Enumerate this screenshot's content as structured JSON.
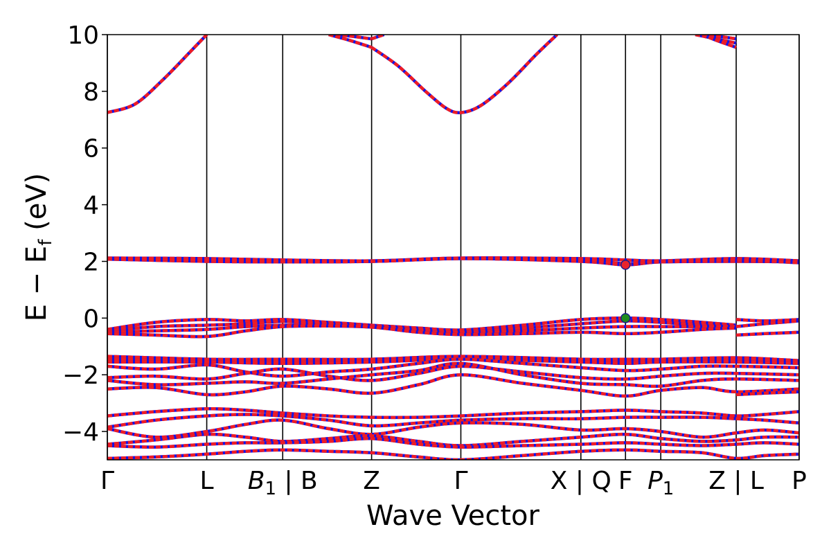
{
  "chart_data": {
    "type": "line",
    "title": "",
    "xlabel": "Wave Vector",
    "ylabel": "E − E_f (eV)",
    "ylabel_main": "E − E",
    "ylabel_sub": "f",
    "ylabel_unit": " (eV)",
    "ylim": [
      -5,
      10
    ],
    "xlim": [
      0,
      1
    ],
    "grid": false,
    "legend": "none",
    "y_ticks": [
      -4,
      -2,
      0,
      2,
      4,
      6,
      8,
      10
    ],
    "y_tick_labels": [
      "−4",
      "−2",
      "0",
      "2",
      "4",
      "6",
      "8",
      "10"
    ],
    "kpoints": [
      {
        "x": 0.0,
        "label": "Γ",
        "italic": false
      },
      {
        "x": 0.1437,
        "label": "L",
        "italic": false
      },
      {
        "x": 0.2535,
        "label": "B",
        "sub": "1",
        "suffix": " | B",
        "italic": true
      },
      {
        "x": 0.382,
        "label": "Z",
        "italic": false
      },
      {
        "x": 0.511,
        "label": "Γ",
        "italic": false
      },
      {
        "x": 0.6845,
        "label": "X | Q",
        "italic": false
      },
      {
        "x": 0.749,
        "label": "F",
        "italic": false
      },
      {
        "x": 0.8,
        "label": "P",
        "sub": "1",
        "italic": true
      },
      {
        "x": 0.909,
        "label": "Z | L",
        "italic": false
      },
      {
        "x": 1.0,
        "label": "P",
        "italic": false
      }
    ],
    "special_points": [
      {
        "name": "CBM",
        "x": 0.749,
        "y": 1.88,
        "color": "#e8242c"
      },
      {
        "name": "VBM",
        "x": 0.749,
        "y": 0.0,
        "color": "#1e8c1e"
      }
    ],
    "series": [
      {
        "x": [
          0,
          0.04,
          0.08,
          0.12,
          0.1437
        ],
        "y": [
          7.25,
          7.55,
          8.4,
          9.4,
          10.0
        ]
      },
      {
        "x": [
          0.32,
          0.35,
          0.382
        ],
        "y": [
          10.0,
          9.95,
          9.85
        ]
      },
      {
        "x": [
          0.32,
          0.35,
          0.382
        ],
        "y": [
          10.0,
          9.8,
          9.55
        ]
      },
      {
        "x": [
          0.382,
          0.42,
          0.46,
          0.49,
          0.511,
          0.54,
          0.58,
          0.62,
          0.65
        ],
        "y": [
          9.55,
          8.9,
          8.0,
          7.4,
          7.25,
          7.5,
          8.3,
          9.3,
          10.0
        ]
      },
      {
        "x": [
          0.382,
          0.4
        ],
        "y": [
          9.85,
          10.0
        ]
      },
      {
        "x": [
          0.85,
          0.88,
          0.909
        ],
        "y": [
          10.0,
          9.95,
          9.85
        ]
      },
      {
        "x": [
          0.85,
          0.88,
          0.909
        ],
        "y": [
          10.0,
          9.85,
          9.7
        ]
      },
      {
        "x": [
          0.86,
          0.88,
          0.909
        ],
        "y": [
          10.0,
          9.8,
          9.55
        ]
      },
      {
        "x": [
          0,
          0.1437,
          0.2535,
          0.382,
          0.511,
          0.6845,
          0.749,
          0.8,
          0.909,
          1.0
        ],
        "y": [
          2.12,
          2.1,
          2.05,
          2.02,
          2.12,
          2.1,
          2.05,
          2.02,
          2.1,
          2.02
        ]
      },
      {
        "x": [
          0,
          0.1437,
          0.2535,
          0.382,
          0.511,
          0.6845,
          0.749,
          0.8,
          0.909,
          1.0
        ],
        "y": [
          2.08,
          2.0,
          1.98,
          2.0,
          2.1,
          2.0,
          1.88,
          1.98,
          2.0,
          1.98
        ]
      },
      {
        "x": [
          0,
          0.1437,
          0.2535,
          0.382,
          0.511,
          0.6845,
          0.749,
          0.8,
          0.909,
          1.0
        ],
        "y": [
          2.1,
          2.05,
          2.0,
          2.0,
          2.1,
          2.05,
          1.92,
          2.0,
          2.05,
          1.95
        ]
      },
      {
        "x": [
          0,
          0.07,
          0.1437,
          0.2,
          0.2535,
          0.32,
          0.382,
          0.45,
          0.511,
          0.6,
          0.6845,
          0.749,
          0.8,
          0.86,
          0.909
        ],
        "y": [
          -0.4,
          -0.15,
          -0.05,
          -0.1,
          -0.05,
          -0.15,
          -0.25,
          -0.35,
          -0.42,
          -0.25,
          -0.05,
          0.0,
          -0.05,
          -0.15,
          -0.25
        ]
      },
      {
        "x": [
          0,
          0.07,
          0.1437,
          0.2,
          0.2535,
          0.32,
          0.382,
          0.45,
          0.511,
          0.6,
          0.6845,
          0.749,
          0.8,
          0.86,
          0.909
        ],
        "y": [
          -0.45,
          -0.3,
          -0.25,
          -0.2,
          -0.12,
          -0.2,
          -0.28,
          -0.4,
          -0.5,
          -0.35,
          -0.2,
          -0.1,
          -0.15,
          -0.25,
          -0.3
        ]
      },
      {
        "x": [
          0,
          0.07,
          0.1437,
          0.2,
          0.2535,
          0.32,
          0.382,
          0.45,
          0.511,
          0.6,
          0.6845,
          0.749,
          0.8,
          0.86,
          0.909
        ],
        "y": [
          -0.5,
          -0.45,
          -0.4,
          -0.3,
          -0.25,
          -0.25,
          -0.3,
          -0.45,
          -0.55,
          -0.45,
          -0.35,
          -0.3,
          -0.3,
          -0.3,
          -0.3
        ]
      },
      {
        "x": [
          0,
          0.07,
          0.1437,
          0.2,
          0.2535,
          0.32,
          0.382,
          0.45,
          0.511,
          0.6,
          0.6845,
          0.749,
          0.8,
          0.86,
          0.909
        ],
        "y": [
          -0.55,
          -0.6,
          -0.65,
          -0.45,
          -0.3,
          -0.28,
          -0.32,
          -0.5,
          -0.58,
          -0.55,
          -0.5,
          -0.55,
          -0.5,
          -0.4,
          -0.35
        ]
      },
      {
        "x": [
          0.909,
          0.95,
          1.0
        ],
        "y": [
          -0.05,
          -0.1,
          -0.05
        ]
      },
      {
        "x": [
          0.909,
          0.95,
          1.0
        ],
        "y": [
          -0.3,
          -0.2,
          -0.1
        ]
      },
      {
        "x": [
          0.909,
          0.95,
          1.0
        ],
        "y": [
          -0.6,
          -0.55,
          -0.5
        ]
      },
      {
        "x": [
          0,
          0.1437,
          0.2535,
          0.382,
          0.511,
          0.6845,
          0.749,
          0.8,
          0.909,
          1.0
        ],
        "y": [
          -1.35,
          -1.45,
          -1.45,
          -1.45,
          -1.35,
          -1.45,
          -1.45,
          -1.45,
          -1.4,
          -1.5
        ]
      },
      {
        "x": [
          0,
          0.1437,
          0.2535,
          0.382,
          0.511,
          0.6845,
          0.749,
          0.8,
          0.909,
          1.0
        ],
        "y": [
          -1.45,
          -1.5,
          -1.55,
          -1.5,
          -1.4,
          -1.5,
          -1.55,
          -1.5,
          -1.5,
          -1.55
        ]
      },
      {
        "x": [
          0,
          0.1437,
          0.2535,
          0.382,
          0.511,
          0.6845,
          0.749,
          0.8,
          0.909,
          1.0
        ],
        "y": [
          -1.55,
          -1.55,
          -1.6,
          -1.55,
          -1.45,
          -1.55,
          -1.6,
          -1.55,
          -1.55,
          -1.6
        ]
      },
      {
        "x": [
          0,
          0.07,
          0.1437,
          0.2,
          0.2535,
          0.32,
          0.382,
          0.45,
          0.511,
          0.6,
          0.6845,
          0.749,
          0.8,
          0.86,
          0.909,
          1.0
        ],
        "y": [
          -1.7,
          -1.8,
          -1.65,
          -1.9,
          -2.05,
          -1.9,
          -1.8,
          -1.6,
          -1.45,
          -1.6,
          -1.75,
          -1.85,
          -1.8,
          -1.7,
          -1.7,
          -1.75
        ]
      },
      {
        "x": [
          0,
          0.07,
          0.1437,
          0.2,
          0.2535,
          0.32,
          0.382,
          0.45,
          0.511,
          0.6,
          0.6845,
          0.749,
          0.8,
          0.86,
          0.909,
          1.0
        ],
        "y": [
          -2.1,
          -2.05,
          -2.15,
          -1.95,
          -1.8,
          -2.05,
          -2.2,
          -1.95,
          -1.7,
          -1.9,
          -2.1,
          -2.15,
          -2.05,
          -1.95,
          -1.95,
          -2.0
        ]
      },
      {
        "x": [
          0,
          0.07,
          0.1437,
          0.2,
          0.2535,
          0.32,
          0.382,
          0.45,
          0.511,
          0.6,
          0.6845,
          0.749,
          0.8,
          0.86,
          0.909,
          1.0
        ],
        "y": [
          -2.2,
          -2.35,
          -2.3,
          -2.25,
          -2.3,
          -2.15,
          -2.0,
          -1.85,
          -1.6,
          -2.0,
          -2.3,
          -2.35,
          -2.4,
          -2.2,
          -2.15,
          -2.2
        ]
      },
      {
        "x": [
          0,
          0.07,
          0.1437,
          0.2,
          0.2535,
          0.32,
          0.382,
          0.45,
          0.511,
          0.6,
          0.6845,
          0.749,
          0.8,
          0.86,
          0.909,
          1.0
        ],
        "y": [
          -2.5,
          -2.45,
          -2.7,
          -2.6,
          -2.4,
          -2.5,
          -2.65,
          -2.35,
          -2.0,
          -2.3,
          -2.55,
          -2.75,
          -2.55,
          -2.45,
          -2.6,
          -2.5
        ]
      },
      {
        "x": [
          0.909,
          0.95,
          1.0
        ],
        "y": [
          -2.7,
          -2.65,
          -2.6
        ]
      },
      {
        "x": [
          0,
          0.07,
          0.1437,
          0.2,
          0.2535,
          0.32,
          0.382,
          0.45,
          0.511,
          0.6,
          0.6845,
          0.749,
          0.8,
          0.86,
          0.909,
          0.95,
          1.0
        ],
        "y": [
          -3.45,
          -3.3,
          -3.2,
          -3.25,
          -3.35,
          -3.45,
          -3.5,
          -3.5,
          -3.45,
          -3.35,
          -3.3,
          -3.25,
          -3.3,
          -3.35,
          -3.45,
          -3.4,
          -3.3
        ]
      },
      {
        "x": [
          0,
          0.07,
          0.1437,
          0.2,
          0.2535,
          0.32,
          0.382,
          0.45,
          0.511,
          0.6,
          0.6845,
          0.749,
          0.8,
          0.86,
          0.909,
          0.95,
          1.0
        ],
        "y": [
          -3.85,
          -3.6,
          -3.45,
          -3.4,
          -3.45,
          -3.6,
          -3.8,
          -3.7,
          -3.6,
          -3.55,
          -3.55,
          -3.5,
          -3.5,
          -3.5,
          -3.55,
          -3.6,
          -3.7
        ]
      },
      {
        "x": [
          0,
          0.07,
          0.1437,
          0.2,
          0.2535,
          0.32,
          0.382,
          0.45,
          0.511,
          0.6,
          0.6845,
          0.749,
          0.8,
          0.86,
          0.909,
          0.95,
          1.0
        ],
        "y": [
          -3.9,
          -4.2,
          -4.0,
          -3.75,
          -3.6,
          -3.9,
          -4.1,
          -3.85,
          -3.7,
          -3.75,
          -3.95,
          -3.9,
          -4.0,
          -4.2,
          -4.05,
          -3.95,
          -4.05
        ]
      },
      {
        "x": [
          0,
          0.07,
          0.1437,
          0.2,
          0.2535,
          0.32,
          0.382,
          0.45,
          0.511,
          0.6,
          0.6845,
          0.749,
          0.8,
          0.86,
          0.909,
          0.95,
          1.0
        ],
        "y": [
          -4.45,
          -4.3,
          -4.1,
          -4.2,
          -4.35,
          -4.25,
          -4.15,
          -4.35,
          -4.5,
          -4.35,
          -4.2,
          -4.1,
          -4.25,
          -4.35,
          -4.3,
          -4.2,
          -4.2
        ]
      },
      {
        "x": [
          0,
          0.07,
          0.1437,
          0.2,
          0.2535,
          0.32,
          0.382,
          0.45,
          0.511,
          0.6,
          0.6845,
          0.749,
          0.8,
          0.86,
          0.909,
          0.95,
          1.0
        ],
        "y": [
          -4.5,
          -4.55,
          -4.45,
          -4.4,
          -4.4,
          -4.35,
          -4.25,
          -4.45,
          -4.55,
          -4.5,
          -4.45,
          -4.4,
          -4.45,
          -4.5,
          -4.45,
          -4.4,
          -4.45
        ]
      },
      {
        "x": [
          0,
          0.07,
          0.1437,
          0.2,
          0.2535,
          0.32,
          0.382,
          0.45,
          0.511,
          0.6,
          0.6845,
          0.749,
          0.8,
          0.86,
          0.909,
          0.95,
          1.0
        ],
        "y": [
          -4.95,
          -4.9,
          -4.8,
          -4.7,
          -4.65,
          -4.7,
          -4.75,
          -4.9,
          -5.0,
          -4.85,
          -4.7,
          -4.65,
          -4.7,
          -4.75,
          -4.95,
          -4.85,
          -4.8
        ]
      }
    ]
  }
}
